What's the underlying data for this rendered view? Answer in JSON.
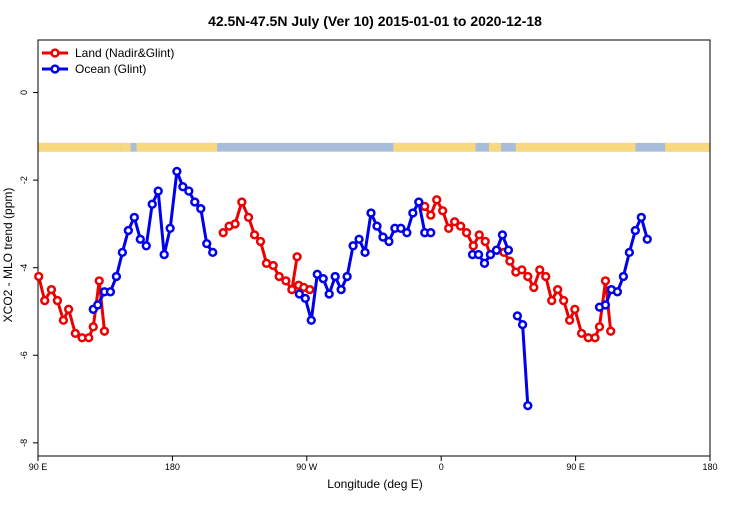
{
  "chart_data": {
    "type": "line",
    "title": "42.5N-47.5N July (Ver 10)   2015-01-01 to 2020-12-18",
    "xlabel": "Longitude (deg E)",
    "ylabel": "XCO2 - MLO trend (ppm)",
    "xlim": [
      90,
      540
    ],
    "ylim": [
      -8.3,
      1.2
    ],
    "x_ticks": [
      {
        "value": 90,
        "label": "90 E"
      },
      {
        "value": 180,
        "label": "180"
      },
      {
        "value": 270,
        "label": "90 W"
      },
      {
        "value": 360,
        "label": "0"
      },
      {
        "value": 450,
        "label": "90 E"
      },
      {
        "value": 540,
        "label": "180"
      }
    ],
    "y_ticks": [
      {
        "value": 0,
        "label": "0"
      },
      {
        "value": -2,
        "label": "-2"
      },
      {
        "value": -4,
        "label": "-4"
      },
      {
        "value": -6,
        "label": "-6"
      },
      {
        "value": -8,
        "label": "-8"
      }
    ],
    "legend_position": "top-left",
    "land_ocean_strip": {
      "y_range": [
        -1.35,
        -1.15
      ],
      "land_color": "#F8D980",
      "ocean_color": "#A9BDDA",
      "land_ranges": [
        [
          90,
          145
        ],
        [
          145,
          152
        ],
        [
          156,
          210
        ],
        [
          328,
          383
        ],
        [
          392,
          400
        ],
        [
          410,
          490
        ],
        [
          510,
          540
        ]
      ]
    },
    "series": [
      {
        "name": "Land (Nadir&Glint)",
        "color": "#EE0000",
        "segments": [
          [
            [
              90.5,
              -4.2
            ],
            [
              94.5,
              -4.75
            ],
            [
              99,
              -4.5
            ],
            [
              103,
              -4.75
            ],
            [
              107,
              -5.2
            ],
            [
              110.5,
              -4.95
            ],
            [
              115,
              -5.5
            ],
            [
              119.5,
              -5.6
            ],
            [
              124,
              -5.6
            ],
            [
              127,
              -5.35
            ],
            [
              131,
              -4.3
            ],
            [
              134.5,
              -5.45
            ]
          ],
          [
            [
              214,
              -3.2
            ],
            [
              218,
              -3.05
            ],
            [
              222,
              -3.0
            ],
            [
              226.5,
              -2.5
            ],
            [
              231,
              -2.85
            ],
            [
              235,
              -3.25
            ],
            [
              239,
              -3.4
            ],
            [
              243,
              -3.9
            ],
            [
              247.5,
              -3.95
            ],
            [
              251.5,
              -4.2
            ],
            [
              256,
              -4.3
            ],
            [
              260,
              -4.5
            ],
            [
              263.5,
              -3.75
            ]
          ],
          [
            [
              264.5,
              -4.4
            ],
            [
              268,
              -4.45
            ],
            [
              272,
              -4.5
            ]
          ],
          [
            [
              349,
              -2.6
            ],
            [
              353,
              -2.8
            ],
            [
              357,
              -2.45
            ],
            [
              361,
              -2.7
            ],
            [
              365,
              -3.1
            ],
            [
              369,
              -2.95
            ],
            [
              373,
              -3.05
            ],
            [
              377,
              -3.2
            ],
            [
              381.5,
              -3.5
            ],
            [
              385.5,
              -3.25
            ],
            [
              389.5,
              -3.4
            ],
            [
              393,
              -3.7
            ],
            [
              397.5,
              -3.6
            ],
            [
              402,
              -3.65
            ],
            [
              406,
              -3.85
            ],
            [
              410,
              -4.1
            ],
            [
              414,
              -4.05
            ],
            [
              418,
              -4.2
            ],
            [
              422,
              -4.45
            ],
            [
              426,
              -4.05
            ],
            [
              430,
              -4.2
            ],
            [
              434,
              -4.75
            ],
            [
              438,
              -4.5
            ],
            [
              442,
              -4.75
            ],
            [
              446,
              -5.2
            ],
            [
              449.5,
              -4.95
            ],
            [
              454,
              -5.5
            ],
            [
              458.5,
              -5.6
            ],
            [
              463,
              -5.6
            ],
            [
              466,
              -5.35
            ],
            [
              470,
              -4.3
            ],
            [
              473.5,
              -5.45
            ]
          ]
        ]
      },
      {
        "name": "Ocean (Glint)",
        "color": "#0000EE",
        "segments": [
          [
            [
              127,
              -4.95
            ],
            [
              130,
              -4.85
            ],
            [
              134.5,
              -4.55
            ],
            [
              138.5,
              -4.55
            ],
            [
              142.5,
              -4.2
            ],
            [
              146.5,
              -3.65
            ],
            [
              150.5,
              -3.15
            ],
            [
              154.5,
              -2.85
            ],
            [
              158.5,
              -3.35
            ],
            [
              162.5,
              -3.5
            ],
            [
              166.5,
              -2.55
            ],
            [
              170.5,
              -2.25
            ],
            [
              174.5,
              -3.7
            ],
            [
              178.5,
              -3.1
            ],
            [
              183,
              -1.8
            ],
            [
              187,
              -2.15
            ],
            [
              191,
              -2.25
            ],
            [
              195,
              -2.5
            ],
            [
              199,
              -2.65
            ],
            [
              203,
              -3.45
            ],
            [
              207,
              -3.65
            ]
          ],
          [
            [
              265,
              -4.6
            ],
            [
              269,
              -4.7
            ],
            [
              273,
              -5.2
            ],
            [
              277,
              -4.15
            ],
            [
              281,
              -4.25
            ],
            [
              285,
              -4.6
            ],
            [
              289,
              -4.2
            ],
            [
              293,
              -4.5
            ],
            [
              297,
              -4.2
            ],
            [
              301,
              -3.5
            ],
            [
              305,
              -3.35
            ],
            [
              309,
              -3.65
            ],
            [
              313,
              -2.75
            ],
            [
              317,
              -3.05
            ],
            [
              321,
              -3.3
            ],
            [
              325,
              -3.4
            ],
            [
              329,
              -3.1
            ],
            [
              333,
              -3.1
            ],
            [
              337,
              -3.2
            ],
            [
              341,
              -2.75
            ],
            [
              345,
              -2.5
            ],
            [
              349,
              -3.2
            ],
            [
              353,
              -3.2
            ]
          ],
          [
            [
              381,
              -3.7
            ],
            [
              385,
              -3.7
            ],
            [
              389,
              -3.9
            ],
            [
              393,
              -3.7
            ],
            [
              397,
              -3.6
            ],
            [
              401,
              -3.25
            ],
            [
              405,
              -3.6
            ]
          ],
          [
            [
              411,
              -5.1
            ],
            [
              414.5,
              -5.3
            ],
            [
              418,
              -7.15
            ]
          ],
          [
            [
              466,
              -4.9
            ],
            [
              470,
              -4.85
            ],
            [
              474,
              -4.5
            ],
            [
              478,
              -4.55
            ],
            [
              482,
              -4.2
            ],
            [
              486,
              -3.65
            ],
            [
              490,
              -3.15
            ],
            [
              494,
              -2.85
            ],
            [
              498,
              -3.35
            ]
          ]
        ]
      }
    ]
  }
}
